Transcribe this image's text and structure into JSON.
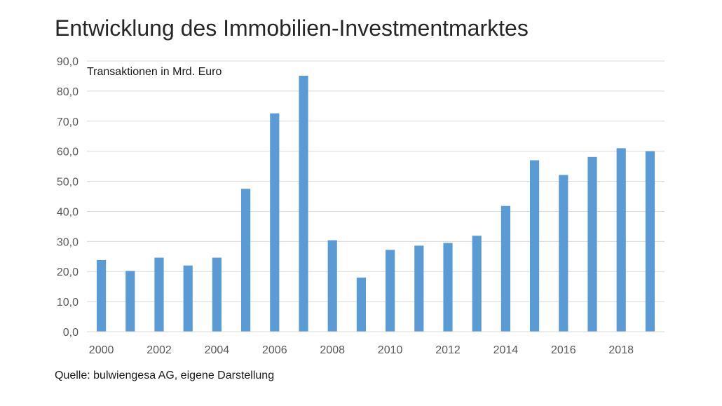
{
  "chart_data": {
    "type": "bar",
    "title": "Entwicklung des Immobilien-Investmentmarktes",
    "ylabel": "Transaktionen in Mrd. Euro",
    "xlabel": "",
    "source": "Quelle: bulwiengesa AG, eigene Darstellung",
    "ylim": [
      0,
      90
    ],
    "ytick_step": 10,
    "yticks": [
      "0,0",
      "10,0",
      "20,0",
      "30,0",
      "40,0",
      "50,0",
      "60,0",
      "70,0",
      "80,0",
      "90,0"
    ],
    "grid": true,
    "legend": "none",
    "bar_color": "#5b9bd5",
    "categories": [
      "2000",
      "2001",
      "2002",
      "2003",
      "2004",
      "2005",
      "2006",
      "2007",
      "2008",
      "2009",
      "2010",
      "2011",
      "2012",
      "2013",
      "2014",
      "2015",
      "2016",
      "2017",
      "2018",
      "2019"
    ],
    "xtick_labels": [
      "2000",
      "",
      "2002",
      "",
      "2004",
      "",
      "2006",
      "",
      "2008",
      "",
      "2010",
      "",
      "2012",
      "",
      "2014",
      "",
      "2016",
      "",
      "2018",
      ""
    ],
    "values": [
      23.8,
      20.2,
      24.6,
      22.0,
      24.6,
      47.5,
      72.6,
      85.1,
      30.4,
      18.0,
      27.2,
      28.6,
      29.5,
      31.9,
      41.8,
      57.0,
      52.1,
      58.1,
      61.0,
      60.0
    ]
  }
}
